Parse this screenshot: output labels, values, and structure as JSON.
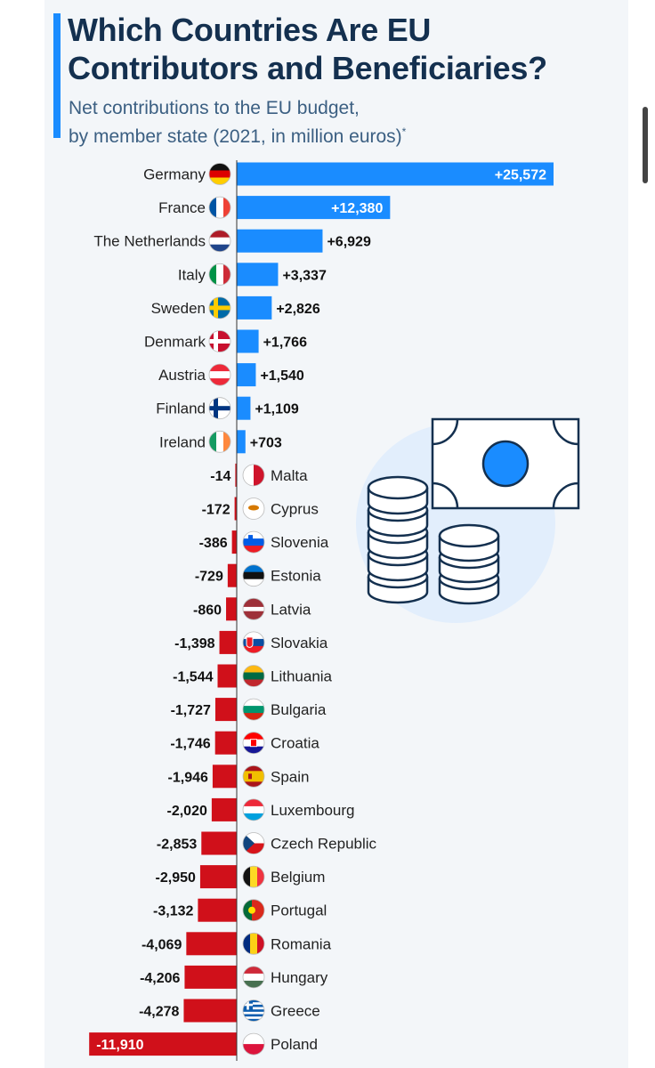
{
  "header": {
    "title_line1": "Which Countries Are EU",
    "title_line2": "Contributors and Beneficiaries?",
    "subtitle_line1": "Net contributions to the EU budget,",
    "subtitle_line2": "by member state (2021, in million euros)",
    "subtitle_marker": "*"
  },
  "colors": {
    "positive": "#1a8cff",
    "negative": "#d0101a",
    "title": "#14304f",
    "subtitle": "#3b5f82",
    "background": "#f3f6f9"
  },
  "illustration": {
    "icon": "money-and-coins-icon"
  },
  "chart_data": {
    "type": "bar",
    "orientation": "horizontal",
    "title": "Which Countries Are EU Contributors and Beneficiaries?",
    "subtitle": "Net contributions to the EU budget, by member state (2021, in million euros)*",
    "xlim": [
      -11910,
      25572
    ],
    "grid": false,
    "categories": [
      "Germany",
      "France",
      "The Netherlands",
      "Italy",
      "Sweden",
      "Denmark",
      "Austria",
      "Finland",
      "Ireland",
      "Malta",
      "Cyprus",
      "Slovenia",
      "Estonia",
      "Latvia",
      "Slovakia",
      "Lithuania",
      "Bulgaria",
      "Croatia",
      "Spain",
      "Luxembourg",
      "Czech Republic",
      "Belgium",
      "Portugal",
      "Romania",
      "Hungary",
      "Greece",
      "Poland"
    ],
    "values": [
      25572,
      12380,
      6929,
      3337,
      2826,
      1766,
      1540,
      1109,
      703,
      -14,
      -172,
      -386,
      -729,
      -860,
      -1398,
      -1544,
      -1727,
      -1746,
      -1946,
      -2020,
      -2853,
      -2950,
      -3132,
      -4069,
      -4206,
      -4278,
      -11910
    ],
    "labels": [
      "+25,572",
      "+12,380",
      "+6,929",
      "+3,337",
      "+2,826",
      "+1,766",
      "+1,540",
      "+1,109",
      "+703",
      "-14",
      "-172",
      "-386",
      "-729",
      "-860",
      "-1,398",
      "-1,544",
      "-1,727",
      "-1,746",
      "-1,946",
      "-2,020",
      "-2,853",
      "-2,950",
      "-3,132",
      "-4,069",
      "-4,206",
      "-4,278",
      "-11,910"
    ],
    "flags": [
      "germany-flag-icon",
      "france-flag-icon",
      "netherlands-flag-icon",
      "italy-flag-icon",
      "sweden-flag-icon",
      "denmark-flag-icon",
      "austria-flag-icon",
      "finland-flag-icon",
      "ireland-flag-icon",
      "malta-flag-icon",
      "cyprus-flag-icon",
      "slovenia-flag-icon",
      "estonia-flag-icon",
      "latvia-flag-icon",
      "slovakia-flag-icon",
      "lithuania-flag-icon",
      "bulgaria-flag-icon",
      "croatia-flag-icon",
      "spain-flag-icon",
      "luxembourg-flag-icon",
      "czech-republic-flag-icon",
      "belgium-flag-icon",
      "portugal-flag-icon",
      "romania-flag-icon",
      "hungary-flag-icon",
      "greece-flag-icon",
      "poland-flag-icon"
    ]
  }
}
